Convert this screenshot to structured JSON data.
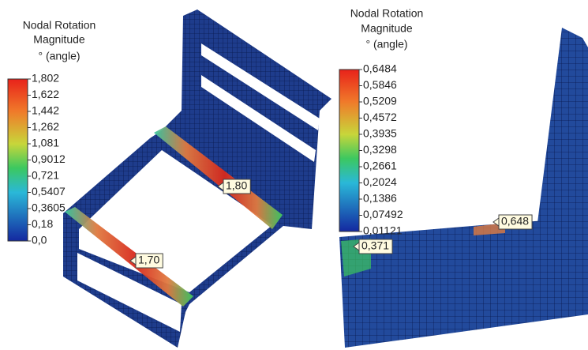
{
  "panels": [
    {
      "legend_title": [
        "Nodal Rotation",
        "Magnitude",
        "° (angle)"
      ],
      "legend_labels": [
        "1,802",
        "1,622",
        "1,442",
        "1,262",
        "1,081",
        "0,9012",
        "0,721",
        "0,5407",
        "0,3605",
        "0,18",
        "0,0"
      ],
      "probes": [
        "1,80",
        "1,70"
      ]
    },
    {
      "legend_title": [
        "Nodal Rotation",
        "Magnitude",
        "° (angle)"
      ],
      "legend_labels": [
        "0,6484",
        "0,5846",
        "0,5209",
        "0,4572",
        "0,3935",
        "0,3298",
        "0,2661",
        "0,2024",
        "0,1386",
        "0,07492",
        "0,01121"
      ],
      "probes": [
        "0,371",
        "0,648"
      ]
    }
  ]
}
